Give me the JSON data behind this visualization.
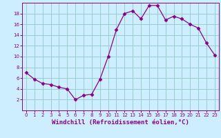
{
  "x": [
    0,
    1,
    2,
    3,
    4,
    5,
    6,
    7,
    8,
    9,
    10,
    11,
    12,
    13,
    14,
    15,
    16,
    17,
    18,
    19,
    20,
    21,
    22,
    23
  ],
  "y": [
    7,
    5.8,
    5.0,
    4.8,
    4.3,
    4.0,
    2.0,
    2.8,
    3.0,
    5.8,
    10.0,
    15.0,
    18.0,
    18.5,
    17.0,
    19.5,
    19.5,
    16.8,
    17.5,
    17.0,
    16.0,
    15.3,
    12.5,
    10.3
  ],
  "line_color": "#880088",
  "marker": "D",
  "marker_size": 2.5,
  "bg_color": "#cceeff",
  "grid_color": "#99cccc",
  "xlabel": "Windchill (Refroidissement éolien,°C)",
  "xlabel_color": "#880088",
  "tick_color": "#880088",
  "spine_color": "#880088",
  "ylim": [
    0,
    20
  ],
  "xlim": [
    -0.5,
    23.5
  ],
  "yticks": [
    2,
    4,
    6,
    8,
    10,
    12,
    14,
    16,
    18
  ],
  "xticks": [
    0,
    1,
    2,
    3,
    4,
    5,
    6,
    7,
    8,
    9,
    10,
    11,
    12,
    13,
    14,
    15,
    16,
    17,
    18,
    19,
    20,
    21,
    22,
    23
  ],
  "tick_labelsize": 5,
  "xlabel_fontsize": 6.5
}
